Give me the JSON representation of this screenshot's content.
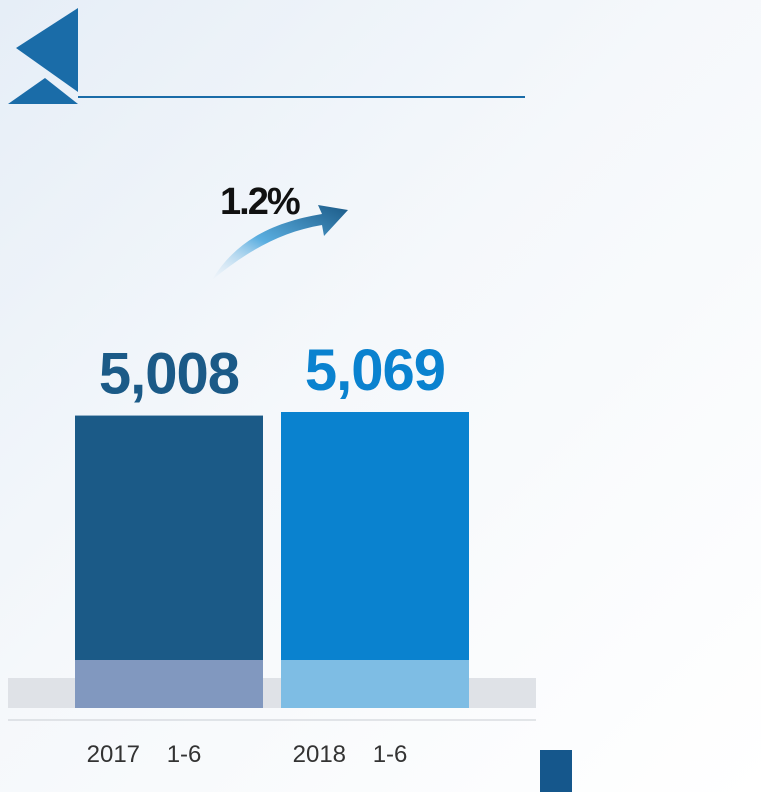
{
  "chart_data": {
    "type": "bar",
    "categories": [
      "2017    1-6",
      "2018    1-6"
    ],
    "values": [
      5008,
      5069
    ],
    "value_labels": [
      "5,008",
      "5,069"
    ],
    "annotation": "1.2%",
    "colors": [
      "#1b5a87",
      "#0a82cf"
    ],
    "base_colors": [
      "#8198bf",
      "#7ebde4"
    ],
    "ylim": [
      0,
      5069
    ]
  },
  "colors": {
    "accent_dark": "#1b5a87",
    "accent_light": "#0a82cf",
    "header_triangle": "#1a6ca8",
    "rule": "#1a6ca8"
  }
}
